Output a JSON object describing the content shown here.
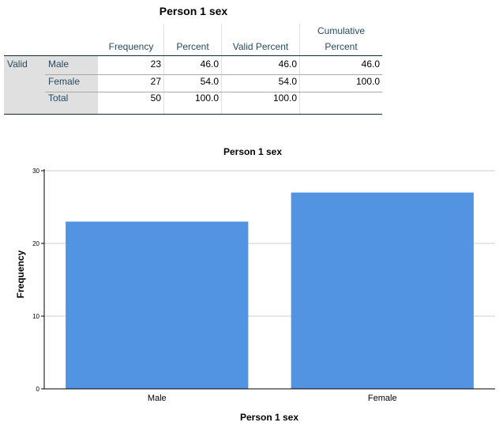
{
  "table": {
    "title": "Person 1 sex",
    "headers": {
      "frequency": "Frequency",
      "percent": "Percent",
      "valid_percent": "Valid Percent",
      "cumulative_line1": "Cumulative",
      "cumulative_line2": "Percent"
    },
    "group_label": "Valid",
    "rows": [
      {
        "label": "Male",
        "frequency": "23",
        "percent": "46.0",
        "valid_percent": "46.0",
        "cumulative": "46.0"
      },
      {
        "label": "Female",
        "frequency": "27",
        "percent": "54.0",
        "valid_percent": "54.0",
        "cumulative": "100.0"
      },
      {
        "label": "Total",
        "frequency": "50",
        "percent": "100.0",
        "valid_percent": "100.0",
        "cumulative": ""
      }
    ]
  },
  "chart_data": {
    "type": "bar",
    "title": "Person 1 sex",
    "xlabel": "Person 1 sex",
    "ylabel": "Frequency",
    "categories": [
      "Male",
      "Female"
    ],
    "values": [
      23,
      27
    ],
    "ylim": [
      0,
      30
    ],
    "yticks": [
      0,
      10,
      20,
      30
    ],
    "grid": true,
    "bar_color": "#5294e2",
    "grid_color": "#cccccc"
  }
}
